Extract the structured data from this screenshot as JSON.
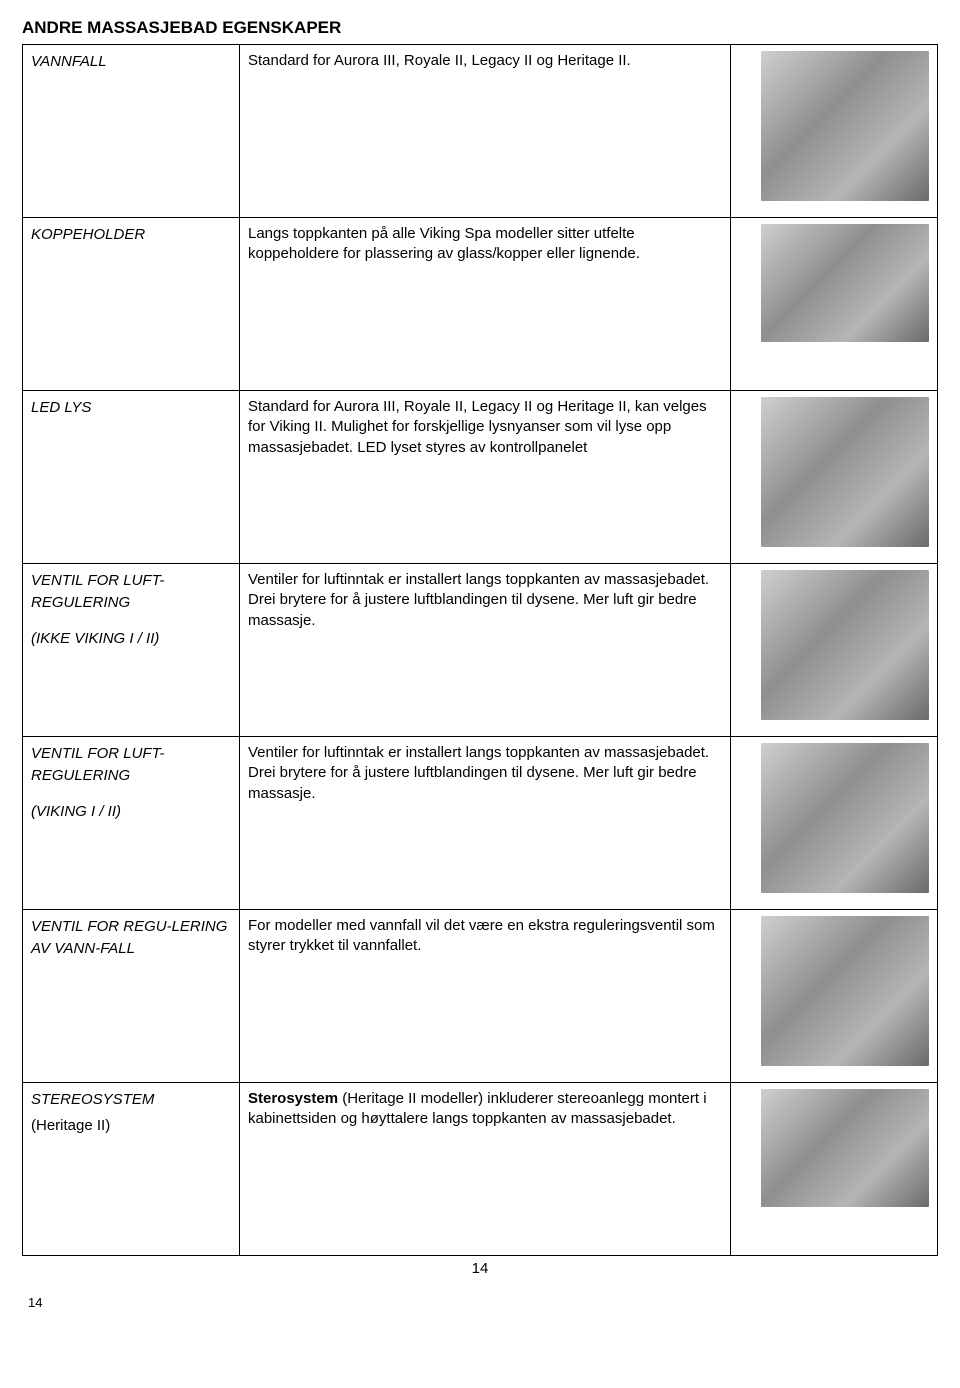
{
  "title": "ANDRE MASSASJEBAD EGENSKAPER",
  "pageNumber": "14",
  "rows": [
    {
      "name": "VANNFALL",
      "subnote": "",
      "subnoteStyle": "",
      "desc": "Standard for Aurora III, Royale II, Legacy II og Heritage II.",
      "bold": ""
    },
    {
      "name": "KOPPEHOLDER",
      "subnote": "",
      "subnoteStyle": "",
      "desc": "Langs toppkanten på alle Viking Spa modeller sitter utfelte koppeholdere for plassering av glass/kopper eller lignende.",
      "bold": ""
    },
    {
      "name": "LED LYS",
      "subnote": "",
      "subnoteStyle": "",
      "desc": "Standard for Aurora III, Royale II, Legacy II og Heritage II, kan velges for Viking II. Mulighet for forskjellige lysnyanser som vil lyse opp massasjebadet. LED lyset styres av kontrollpanelet",
      "bold": ""
    },
    {
      "name": "VENTIL FOR LUFT-REGULERING",
      "subnote": "(IKKE VIKING I / II)",
      "subnoteStyle": "italic",
      "desc": "Ventiler for luftinntak er installert langs toppkanten av massasjebadet. Drei brytere for å justere luftblandingen til dysene. Mer luft gir bedre massasje.",
      "bold": ""
    },
    {
      "name": "VENTIL FOR LUFT-REGULERING",
      "subnote": "(VIKING I / II)",
      "subnoteStyle": "italic",
      "desc": "Ventiler for luftinntak er installert langs toppkanten av massasjebadet. Drei brytere for å justere luftblandingen til dysene. Mer luft gir bedre massasje.",
      "bold": ""
    },
    {
      "name": "VENTIL FOR REGU-LERING AV VANN-FALL",
      "subnote": "",
      "subnoteStyle": "",
      "desc": "For modeller med vannfall vil det være en ekstra reguleringsventil som styrer trykket til vannfallet.",
      "bold": ""
    },
    {
      "name": "STEREOSYSTEM",
      "subnote": "(Heritage II)",
      "subnoteStyle": "plain",
      "desc": " (Heritage II modeller) inkluderer stereoanlegg montert i kabinettsiden og høyttalere langs toppkanten av massasjebadet.",
      "bold": "Sterosystem"
    }
  ]
}
